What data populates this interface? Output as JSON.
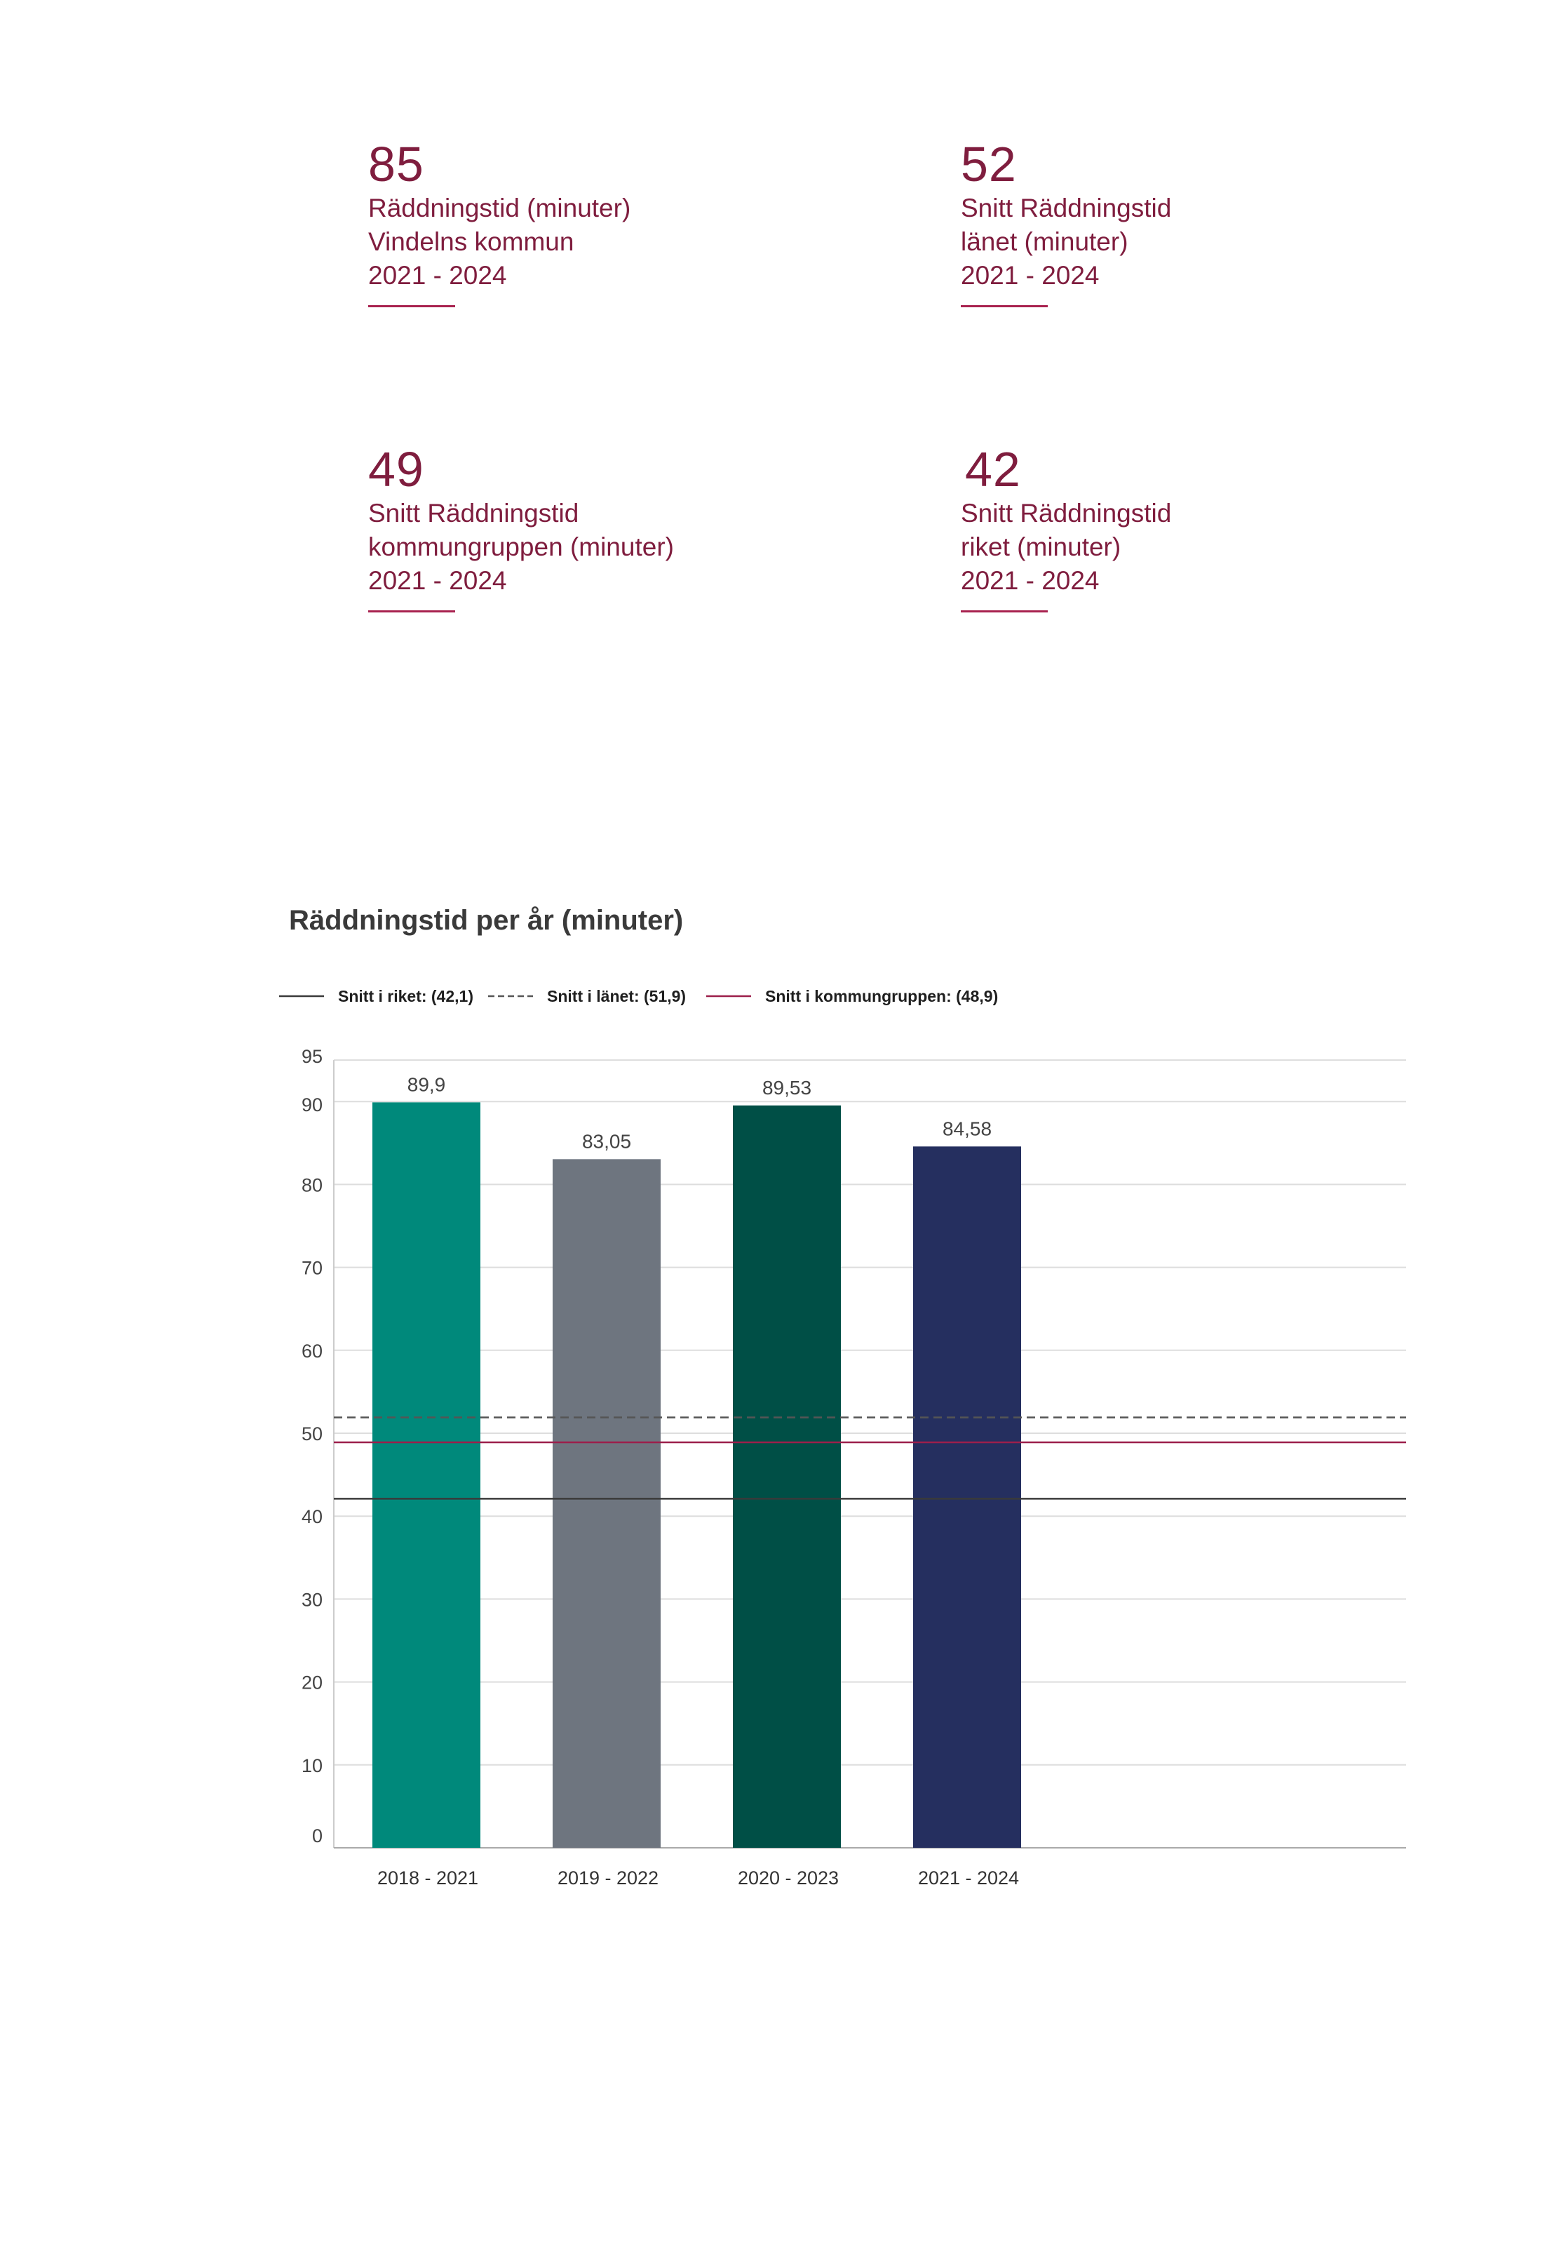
{
  "kpis": [
    {
      "value": "85",
      "lines": [
        "Räddningstid (minuter)",
        "Vindelns kommun",
        "2021 - 2024"
      ]
    },
    {
      "value": "52",
      "lines": [
        "Snitt Räddningstid",
        "länet (minuter)",
        "2021 - 2024"
      ]
    },
    {
      "value": "49",
      "lines": [
        "Snitt Räddningstid",
        "kommungruppen (minuter)",
        "2021 - 2024"
      ]
    },
    {
      "value": "42",
      "lines": [
        "Snitt Räddningstid",
        "riket (minuter)",
        "2021 - 2024"
      ]
    }
  ],
  "colors": {
    "kpi_text": "#7f1d3e",
    "bars": [
      "#00897b",
      "#6e757f",
      "#004f46",
      "#252f5f"
    ],
    "riket_line": "#3a3a3a",
    "lanet_line": "#555555",
    "kommungrupp_line": "#9c1f4b",
    "grid": "#dddddd"
  },
  "chart_data": {
    "type": "bar",
    "title": "Räddningstid per år (minuter)",
    "categories": [
      "2018 - 2021",
      "2019 - 2022",
      "2020 - 2023",
      "2021 - 2024"
    ],
    "values": [
      89.9,
      83.05,
      89.53,
      84.58
    ],
    "value_labels": [
      "89,9",
      "83,05",
      "89,53",
      "84,58"
    ],
    "ylim": [
      0,
      95
    ],
    "yticks": [
      0,
      10,
      20,
      30,
      40,
      50,
      60,
      70,
      80,
      90,
      95
    ],
    "grid": true,
    "legend_position": "top-left",
    "reference_lines": [
      {
        "name": "Snitt i riket",
        "value": 42.1,
        "label": "Snitt i riket: (42,1)",
        "style": "solid"
      },
      {
        "name": "Snitt i länet",
        "value": 51.9,
        "label": "Snitt i länet: (51,9)",
        "style": "dashed"
      },
      {
        "name": "Snitt i kommungruppen",
        "value": 48.9,
        "label": "Snitt i kommungruppen: (48,9)",
        "style": "solid"
      }
    ]
  }
}
